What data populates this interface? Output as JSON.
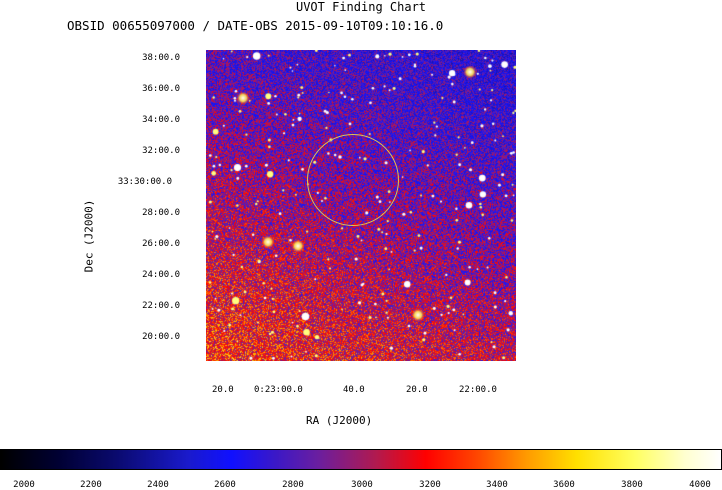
{
  "chart": {
    "title": "UVOT Finding Chart",
    "subtitle": "OBSID 00655097000 / DATE-OBS 2015-09-10T09:10:16.0",
    "xlabel": "RA (J2000)",
    "ylabel": "Dec (J2000)",
    "dec_ticks": [
      "38:00.0",
      "36:00.0",
      "34:00.0",
      "32:00.0",
      "33:30:00.0",
      "28:00.0",
      "26:00.0",
      "24:00.0",
      "22:00.0",
      "20:00.0"
    ],
    "ra_ticks": [
      "20.0",
      "0:23:00.0",
      "40.0",
      "20.0",
      "22:00.0"
    ],
    "colorbar_ticks": [
      "2000",
      "2200",
      "2400",
      "2600",
      "2800",
      "3000",
      "3200",
      "3400",
      "3600",
      "3800",
      "4000"
    ]
  },
  "colors": {
    "target_circle": "#d9c85a",
    "background_low": "#2a1dbd",
    "background_high": "#ff0000"
  }
}
